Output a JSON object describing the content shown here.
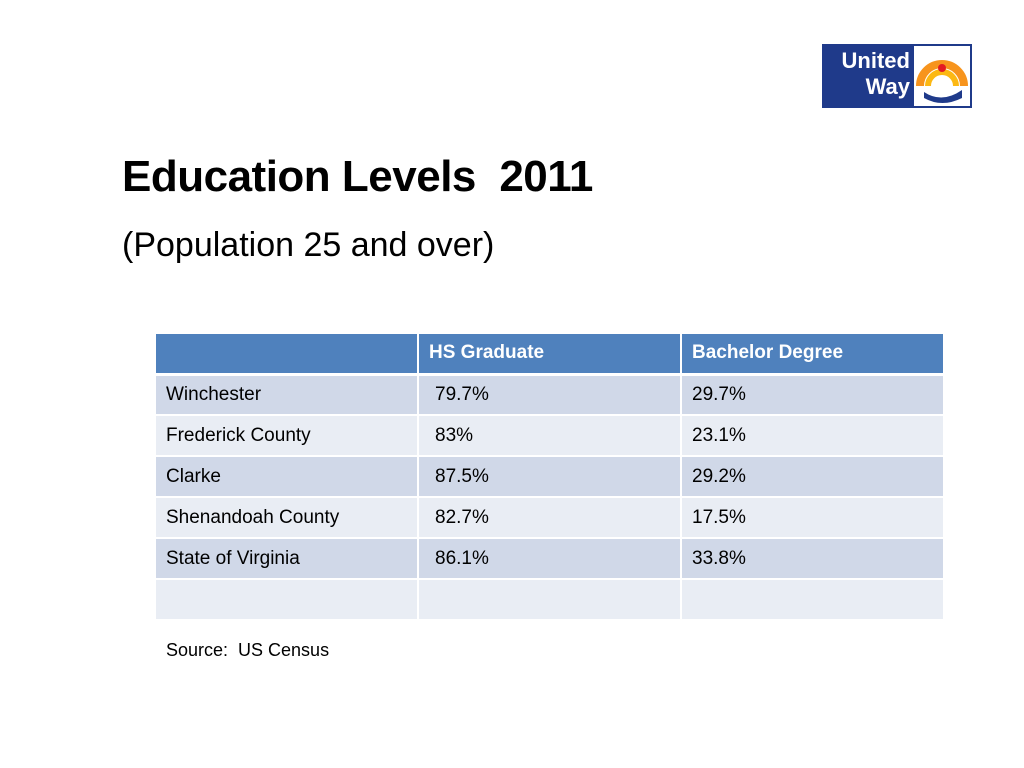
{
  "logo": [
    "United",
    "Way"
  ],
  "title": "Education Levels  2011",
  "subtitle": "(Population 25 and over)",
  "table": {
    "header": [
      "HS Graduate",
      "Bachelor Degree"
    ],
    "rows": [
      [
        "Winchester",
        "79.7%",
        "29.7%"
      ],
      [
        "Frederick County",
        "83%",
        "23.1%"
      ],
      [
        "Clarke",
        "87.5%",
        "29.2%"
      ],
      [
        "Shenandoah County",
        "82.7%",
        "17.5%"
      ],
      [
        "State of Virginia",
        "86.1%",
        "33.8%"
      ]
    ]
  },
  "source": "Source:  US Census"
}
